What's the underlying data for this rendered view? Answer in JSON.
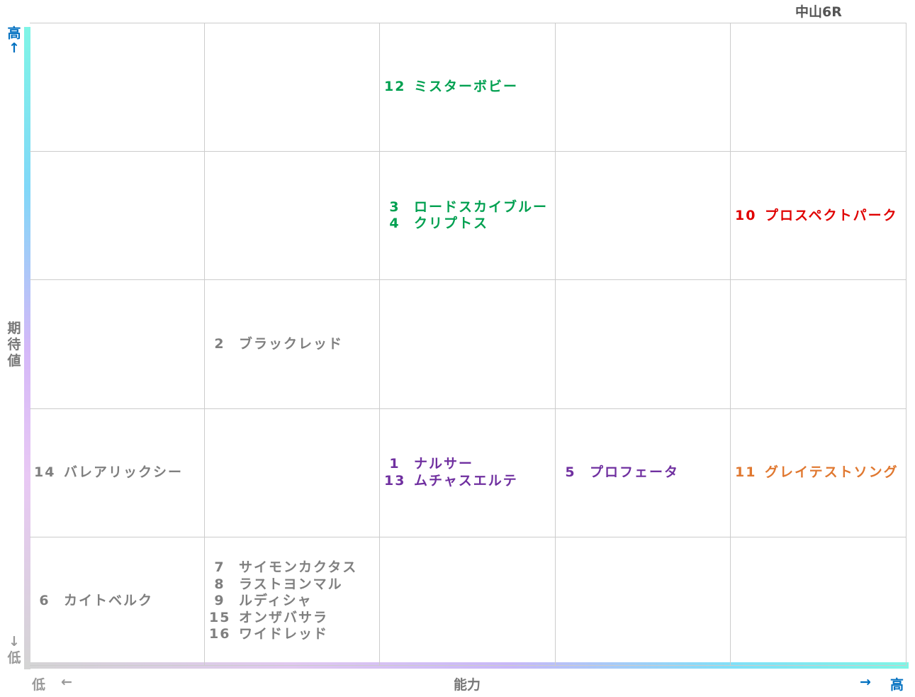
{
  "title": "中山6R",
  "axes": {
    "y_high": "高",
    "y_high_arrow": "↑",
    "y_label": "期待値",
    "y_low_arrow": "↓",
    "y_low": "低",
    "x_low": "低",
    "x_low_arrow": "←",
    "x_label": "能力",
    "x_high_arrow": "→",
    "x_high": "高",
    "high_color": "#0070c0",
    "low_color": "#999999",
    "label_color": "#777777"
  },
  "colors": {
    "green": "#00a050",
    "red": "#e00000",
    "purple": "#7030a0",
    "orange": "#e07830",
    "gray": "#7f7f7f"
  },
  "chart_data": {
    "type": "table",
    "columns": 5,
    "rows": 5,
    "x_axis": "能力",
    "y_axis": "期待値",
    "cells": [
      {
        "col": 3,
        "row": 1,
        "color": "green",
        "horses": [
          {
            "num": "12",
            "name": "ミスターボビー"
          }
        ]
      },
      {
        "col": 3,
        "row": 2,
        "color": "green",
        "horses": [
          {
            "num": "3",
            "name": "ロードスカイブルー"
          },
          {
            "num": "4",
            "name": "クリプトス"
          }
        ]
      },
      {
        "col": 5,
        "row": 2,
        "color": "red",
        "horses": [
          {
            "num": "10",
            "name": "プロスペクトパーク"
          }
        ]
      },
      {
        "col": 2,
        "row": 3,
        "color": "gray",
        "horses": [
          {
            "num": "2",
            "name": "ブラックレッド"
          }
        ]
      },
      {
        "col": 1,
        "row": 4,
        "color": "gray",
        "horses": [
          {
            "num": "14",
            "name": "バレアリックシー"
          }
        ]
      },
      {
        "col": 3,
        "row": 4,
        "color": "purple",
        "horses": [
          {
            "num": "1",
            "name": "ナルサー"
          },
          {
            "num": "13",
            "name": "ムチャスエルテ"
          }
        ]
      },
      {
        "col": 4,
        "row": 4,
        "color": "purple",
        "horses": [
          {
            "num": "5",
            "name": "プロフェータ"
          }
        ]
      },
      {
        "col": 5,
        "row": 4,
        "color": "orange",
        "horses": [
          {
            "num": "11",
            "name": "グレイテストソング"
          }
        ]
      },
      {
        "col": 1,
        "row": 5,
        "color": "gray",
        "horses": [
          {
            "num": "6",
            "name": "カイトベルク"
          }
        ]
      },
      {
        "col": 2,
        "row": 5,
        "color": "gray",
        "horses": [
          {
            "num": "7",
            "name": "サイモンカクタス"
          },
          {
            "num": "8",
            "name": "ラストヨンマル"
          },
          {
            "num": "9",
            "name": "ルディシャ"
          },
          {
            "num": "15",
            "name": "オンザバサラ"
          },
          {
            "num": "16",
            "name": "ワイドレッド"
          }
        ]
      }
    ]
  }
}
